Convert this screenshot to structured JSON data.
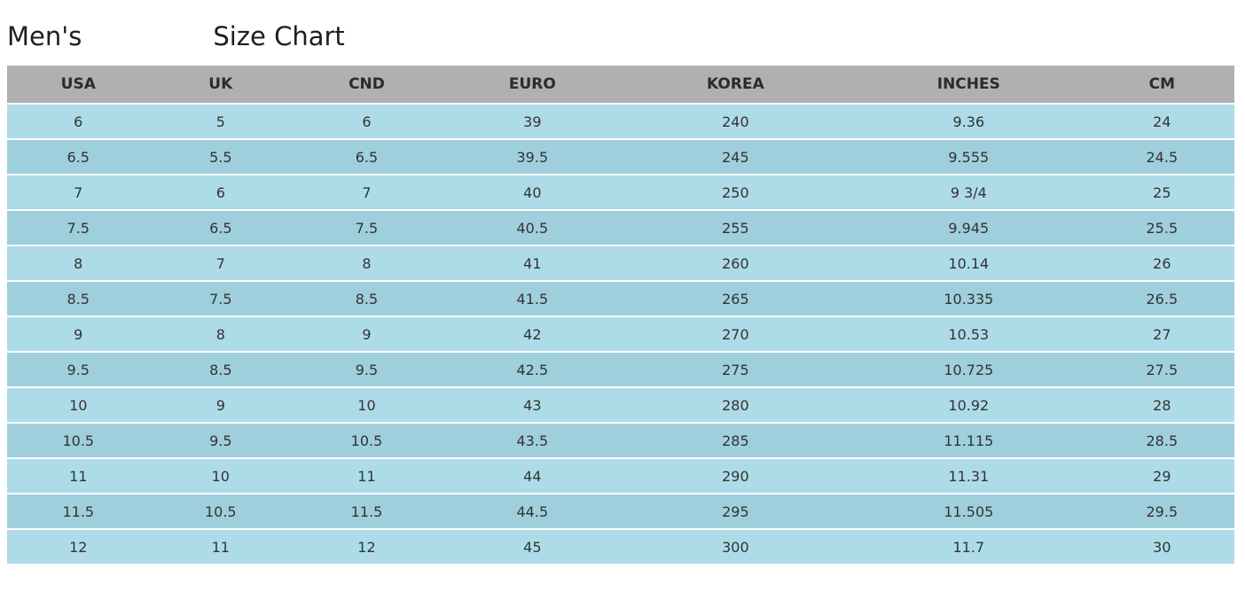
{
  "title": {
    "prefix": "Men's",
    "suffix": "Size Chart"
  },
  "colors": {
    "header_bg": "#b0b0b0",
    "header_text": "#2b2b2b",
    "row_light": "#aedbe8",
    "row_dark": "#9fcfdd",
    "cell_text": "#333333",
    "title_text": "#1e1e1e",
    "page_bg": "#ffffff"
  },
  "chart_data": {
    "type": "table",
    "title": "Men's Size Chart",
    "columns": [
      "USA",
      "UK",
      "CND",
      "EURO",
      "KOREA",
      "INCHES",
      "CM"
    ],
    "rows": [
      [
        "6",
        "5",
        "6",
        "39",
        "240",
        "9.36",
        "24"
      ],
      [
        "6.5",
        "5.5",
        "6.5",
        "39.5",
        "245",
        "9.555",
        "24.5"
      ],
      [
        "7",
        "6",
        "7",
        "40",
        "250",
        "9 3/4",
        "25"
      ],
      [
        "7.5",
        "6.5",
        "7.5",
        "40.5",
        "255",
        "9.945",
        "25.5"
      ],
      [
        "8",
        "7",
        "8",
        "41",
        "260",
        "10.14",
        "26"
      ],
      [
        "8.5",
        "7.5",
        "8.5",
        "41.5",
        "265",
        "10.335",
        "26.5"
      ],
      [
        "9",
        "8",
        "9",
        "42",
        "270",
        "10.53",
        "27"
      ],
      [
        "9.5",
        "8.5",
        "9.5",
        "42.5",
        "275",
        "10.725",
        "27.5"
      ],
      [
        "10",
        "9",
        "10",
        "43",
        "280",
        "10.92",
        "28"
      ],
      [
        "10.5",
        "9.5",
        "10.5",
        "43.5",
        "285",
        "11.115",
        "28.5"
      ],
      [
        "11",
        "10",
        "11",
        "44",
        "290",
        "11.31",
        "29"
      ],
      [
        "11.5",
        "10.5",
        "11.5",
        "44.5",
        "295",
        "11.505",
        "29.5"
      ],
      [
        "12",
        "11",
        "12",
        "45",
        "300",
        "11.7",
        "30"
      ]
    ]
  }
}
